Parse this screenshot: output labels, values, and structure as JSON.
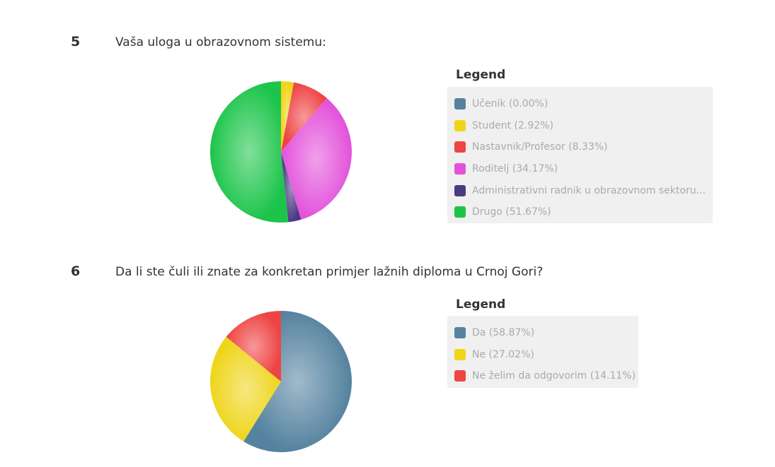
{
  "questions": [
    {
      "number": "5",
      "text": "Vaša uloga u obrazovnom sistemu:",
      "legend_title": "Legend"
    },
    {
      "number": "6",
      "text": "Da li ste čuli ili znate za konkretan primjer lažnih diploma u Crnoj Gori?",
      "legend_title": "Legend"
    }
  ],
  "chart_data": [
    {
      "type": "pie",
      "title": "",
      "legend_position": "right",
      "slices": [
        {
          "label": "Učenik",
          "value": 0.0,
          "legend_text": "Učenik (0.00%)",
          "color": "#54829f"
        },
        {
          "label": "Student",
          "value": 2.92,
          "legend_text": "Student (2.92%)",
          "color": "#eed519"
        },
        {
          "label": "Nastavnik/Profesor",
          "value": 8.33,
          "legend_text": "Nastavnik/Profesor (8.33%)",
          "color": "#ee4444"
        },
        {
          "label": "Roditelj",
          "value": 34.17,
          "legend_text": "Roditelj (34.17%)",
          "color": "#e352db"
        },
        {
          "label": "Administrativni radnik u obrazovnom sektoru",
          "value": 2.92,
          "legend_text": "Administrativni radnik u obrazovnom sektoru...",
          "color": "#4a3a82"
        },
        {
          "label": "Drugo",
          "value": 51.67,
          "legend_text": "Drugo (51.67%)",
          "color": "#1cc44a"
        }
      ]
    },
    {
      "type": "pie",
      "title": "",
      "legend_position": "right",
      "slices": [
        {
          "label": "Da",
          "value": 58.87,
          "legend_text": "Da (58.87%)",
          "color": "#54829f"
        },
        {
          "label": "Ne",
          "value": 27.02,
          "legend_text": "Ne (27.02%)",
          "color": "#eed519"
        },
        {
          "label": "Ne želim da odgovorim",
          "value": 14.11,
          "legend_text": "Ne želim da odgovorim (14.11%)",
          "color": "#ee4444"
        }
      ]
    }
  ]
}
